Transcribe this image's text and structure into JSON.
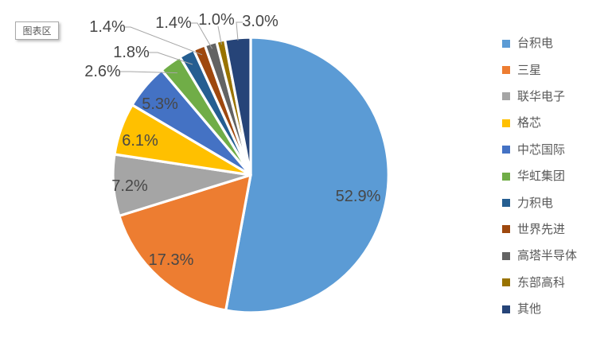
{
  "tooltip": {
    "label": "图表区"
  },
  "chart_data": {
    "type": "pie",
    "title": "",
    "legend_position": "right",
    "grid": false,
    "start_angle_deg": 0,
    "direction": "clockwise",
    "categories": [
      "台积电",
      "三星",
      "联华电子",
      "格芯",
      "中芯国际",
      "华虹集团",
      "力积电",
      "世界先进",
      "高塔半导体",
      "东部高科",
      "其他"
    ],
    "values": [
      52.9,
      17.3,
      7.2,
      6.1,
      5.3,
      2.6,
      1.8,
      1.4,
      1.4,
      1.0,
      3.0
    ],
    "labels": [
      "52.9%",
      "17.3%",
      "7.2%",
      "6.1%",
      "5.3%",
      "2.6%",
      "1.8%",
      "1.4%",
      "1.4%",
      "1.0%",
      "3.0%"
    ],
    "colors": [
      "#5B9BD5",
      "#ED7D31",
      "#A5A5A5",
      "#FFC000",
      "#4472C4",
      "#70AD47",
      "#255E91",
      "#9E480E",
      "#636363",
      "#997300",
      "#264478"
    ],
    "label_color": "#474747",
    "leader_line_color": "#A6A6A6",
    "slice_border_color": "#FFFFFF",
    "legend_text_color": "#595959"
  }
}
